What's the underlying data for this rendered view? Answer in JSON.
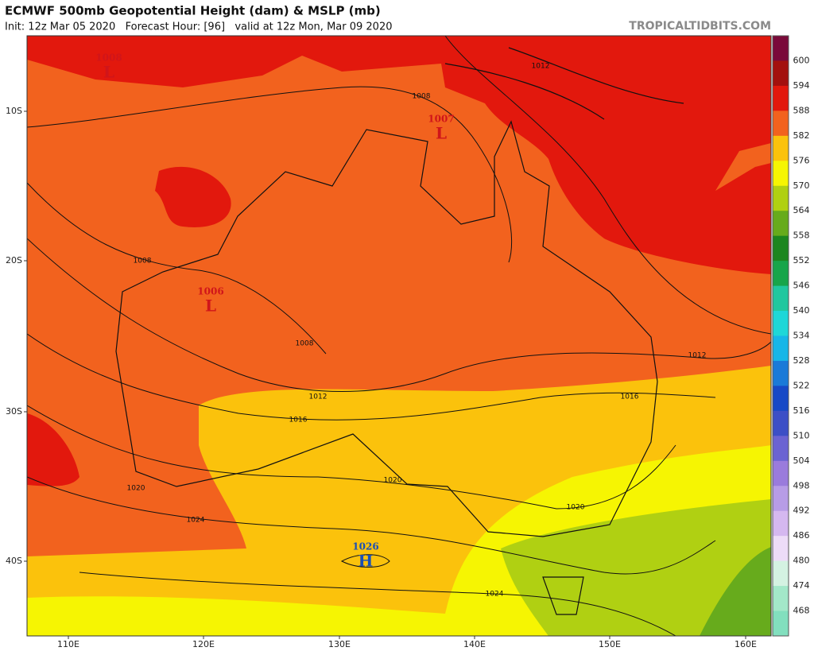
{
  "map": {
    "title": "ECMWF 500mb Geopotential Height (dam) & MSLP (mb)",
    "subtitle": "Init: 12z Mar 05 2020   Forecast Hour: [96]   valid at 12z Mon, Mar 09 2020",
    "credit": "TROPICALTIDBITS.COM",
    "lat_labels": [
      "10S",
      "20S",
      "30S",
      "40S"
    ],
    "lon_labels": [
      "110E",
      "120E",
      "130E",
      "140E",
      "150E",
      "160E"
    ],
    "colorbar": {
      "labels": [
        600,
        594,
        588,
        582,
        576,
        570,
        564,
        558,
        552,
        546,
        540,
        534,
        528,
        522,
        516,
        510,
        504,
        498,
        492,
        486,
        480,
        474,
        468
      ],
      "colors": [
        "#7a0a3a",
        "#a3100e",
        "#e2180d",
        "#f2621e",
        "#fbc20c",
        "#f6f502",
        "#b0d012",
        "#67ab1c",
        "#1d861f",
        "#17a54a",
        "#20c79f",
        "#1ed7d8",
        "#17b6e8",
        "#1a7ad8",
        "#1749c6",
        "#3c4fc6",
        "#6b63d2",
        "#9a7bdc",
        "#b79ce6",
        "#d5b8f0",
        "#eddcf8",
        "#d4f2e2",
        "#a3e8c9",
        "#82dfbe"
      ]
    },
    "contour_labels": [
      "1008",
      "1008",
      "1008",
      "1012",
      "1012",
      "1012",
      "1016",
      "1016",
      "1020",
      "1020",
      "1020",
      "1024",
      "1024"
    ],
    "centers": [
      {
        "letter": "L",
        "value": "1008"
      },
      {
        "letter": "L",
        "value": "1007"
      },
      {
        "letter": "L",
        "value": "1006"
      },
      {
        "letter": "H",
        "value": "1026"
      }
    ]
  }
}
